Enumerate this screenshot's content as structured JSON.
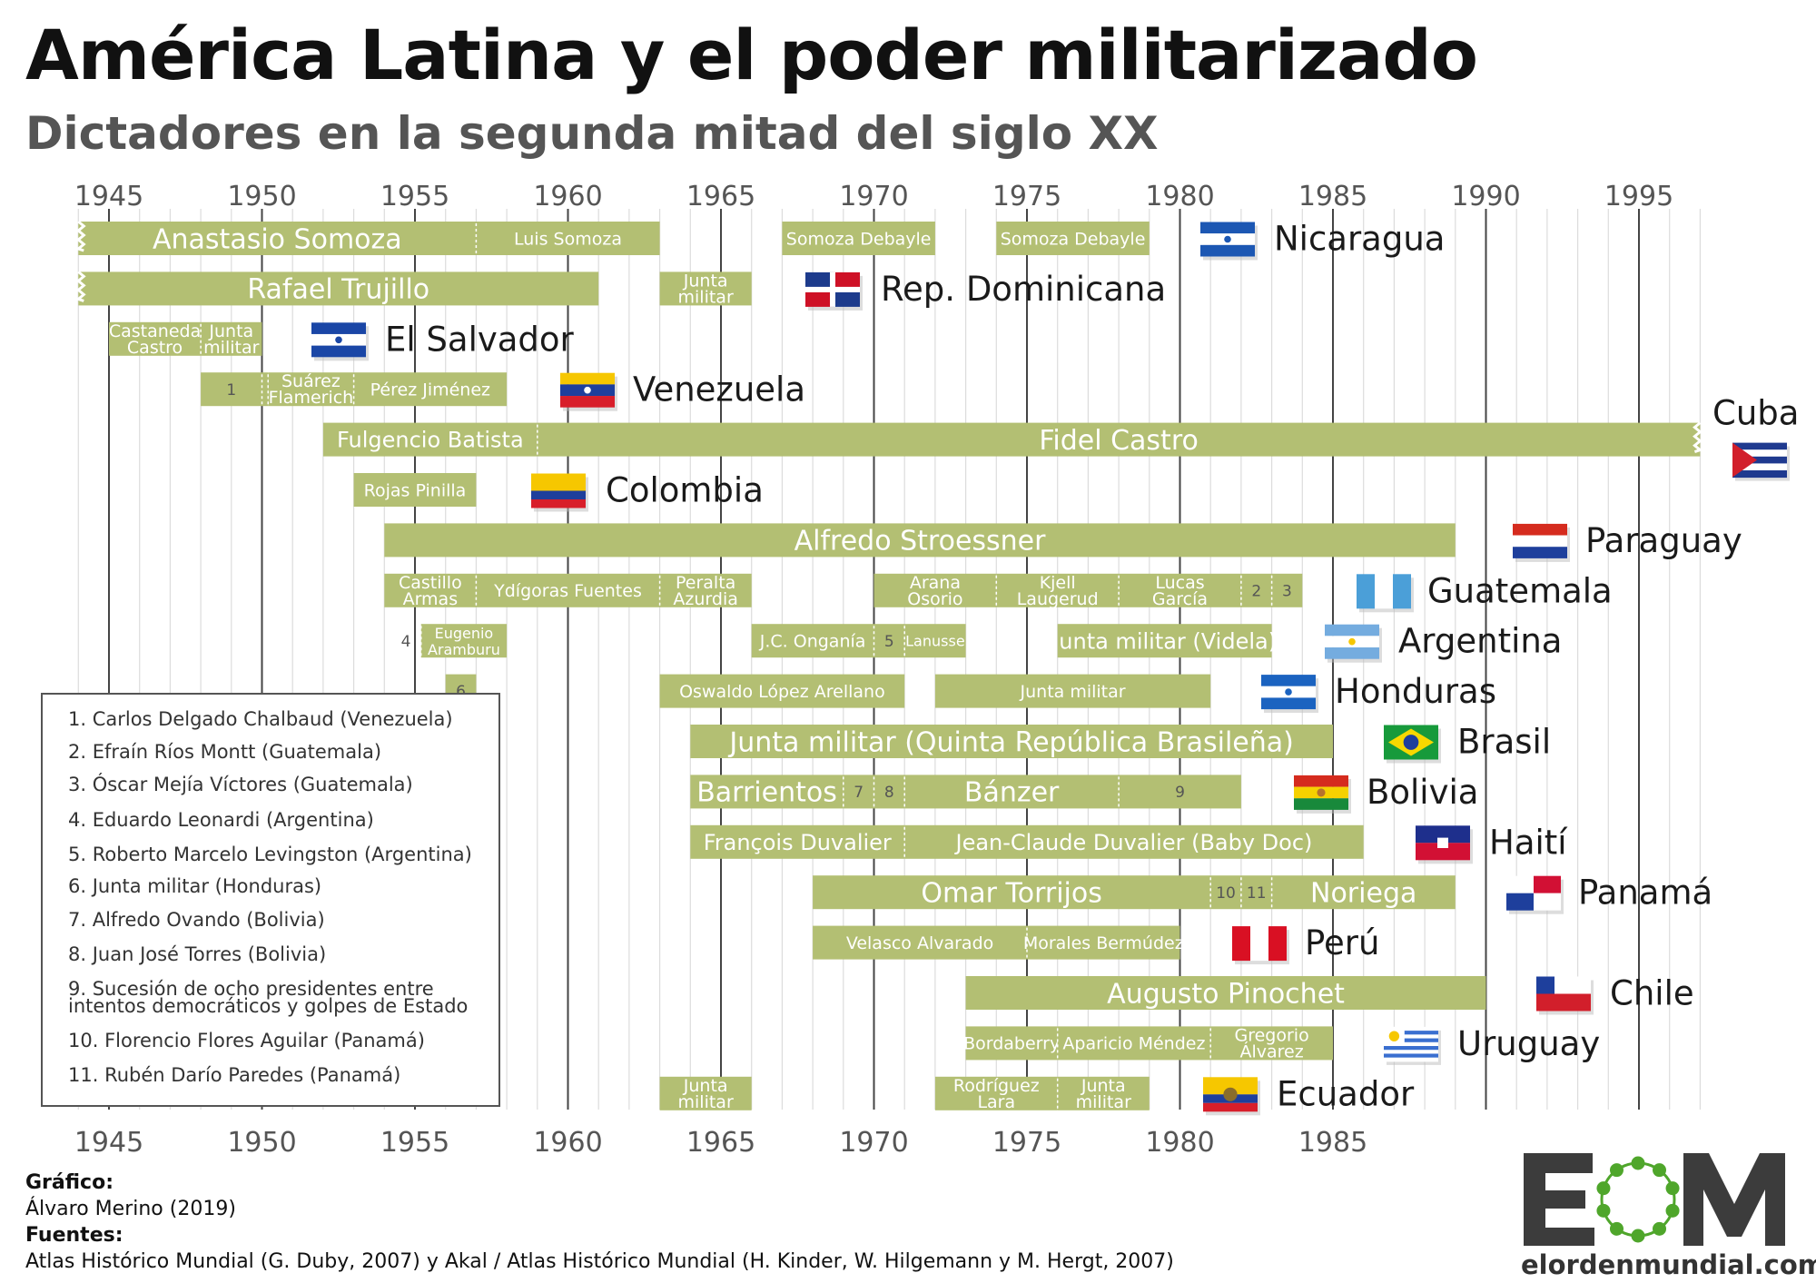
{
  "header": {
    "title": "América Latina y el poder militarizado",
    "subtitle": "Dictadores en la segunda mitad del siglo XX"
  },
  "axis": {
    "top_ticks": [
      "1945",
      "1950",
      "1955",
      "1960",
      "1965",
      "1970",
      "1975",
      "1980",
      "1985",
      "1990",
      "1995"
    ],
    "bottom_ticks": [
      "1945",
      "1950",
      "1955",
      "1960",
      "1965",
      "1970",
      "1975",
      "1980",
      "1985"
    ]
  },
  "chart_data": {
    "type": "gantt",
    "title": "América Latina y el poder militarizado",
    "subtitle": "Dictadores en la segunda mitad del siglo XX",
    "xlim": [
      1944,
      1997
    ],
    "grid": true,
    "rows": [
      {
        "country": "Nicaragua",
        "segments": [
          {
            "label": "Anastasio Somoza",
            "start": 1944,
            "end": 1957,
            "size": "l",
            "cut_left": true
          },
          {
            "label": "Luis Somoza",
            "start": 1957,
            "end": 1963,
            "size": "s"
          },
          {
            "label": "Somoza Debayle",
            "start": 1967,
            "end": 1972,
            "size": "s"
          },
          {
            "label": "Somoza Debayle",
            "start": 1974,
            "end": 1979,
            "size": "s"
          }
        ]
      },
      {
        "country": "Rep. Dominicana",
        "segments": [
          {
            "label": "Rafael Trujillo",
            "start": 1944,
            "end": 1961,
            "size": "l",
            "cut_left": true
          },
          {
            "label": "Junta|militar",
            "start": 1963,
            "end": 1966,
            "size": "s"
          }
        ]
      },
      {
        "country": "El Salvador",
        "segments": [
          {
            "label": "Castaneda|Castro",
            "start": 1945,
            "end": 1948,
            "size": "s"
          },
          {
            "label": "Junta|militar",
            "start": 1948,
            "end": 1950,
            "size": "s"
          }
        ]
      },
      {
        "country": "Venezuela",
        "segments": [
          {
            "label": "1",
            "start": 1948,
            "end": 1950,
            "size": "n"
          },
          {
            "label": "",
            "start": 1950,
            "end": 1950.2,
            "size": "n"
          },
          {
            "label": "Suárez|Flamerich",
            "start": 1950.2,
            "end": 1953,
            "size": "s"
          },
          {
            "label": "Pérez Jiménez",
            "start": 1953,
            "end": 1958,
            "size": "s"
          }
        ]
      },
      {
        "country": "Cuba",
        "segments": [
          {
            "label": "Fulgencio Batista",
            "start": 1952,
            "end": 1959,
            "size": "m"
          },
          {
            "label": "Fidel Castro",
            "start": 1959,
            "end": 1997,
            "size": "l",
            "cut_right": true
          }
        ]
      },
      {
        "country": "Colombia",
        "segments": [
          {
            "label": "Rojas Pinilla",
            "start": 1953,
            "end": 1957,
            "size": "s"
          }
        ]
      },
      {
        "country": "Paraguay",
        "segments": [
          {
            "label": "Alfredo Stroessner",
            "start": 1954,
            "end": 1989,
            "size": "l"
          }
        ]
      },
      {
        "country": "Guatemala",
        "segments": [
          {
            "label": "Castillo|Armas",
            "start": 1954,
            "end": 1957,
            "size": "s"
          },
          {
            "label": "Ydígoras Fuentes",
            "start": 1957,
            "end": 1963,
            "size": "s"
          },
          {
            "label": "Peralta|Azurdia",
            "start": 1963,
            "end": 1966,
            "size": "s"
          },
          {
            "label": "Arana|Osorio",
            "start": 1970,
            "end": 1974,
            "size": "s"
          },
          {
            "label": "Kjell|Laugerud",
            "start": 1974,
            "end": 1978,
            "size": "s"
          },
          {
            "label": "Lucas|García",
            "start": 1978,
            "end": 1982,
            "size": "s"
          },
          {
            "label": "2",
            "start": 1982,
            "end": 1983,
            "size": "n"
          },
          {
            "label": "3",
            "start": 1983,
            "end": 1984,
            "size": "n"
          }
        ]
      },
      {
        "country": "Argentina",
        "segments": [
          {
            "label": "4",
            "start": 1955,
            "end": 1955.2,
            "size": "n",
            "outside": true
          },
          {
            "label": "Eugenio|Aramburu",
            "start": 1955.2,
            "end": 1958,
            "size": "xs"
          },
          {
            "label": "J.C. Onganía",
            "start": 1966,
            "end": 1970,
            "size": "s"
          },
          {
            "label": "5",
            "start": 1970,
            "end": 1971,
            "size": "n"
          },
          {
            "label": "Lanusse",
            "start": 1971,
            "end": 1973,
            "size": "xs"
          },
          {
            "label": "Junta militar (Videla)",
            "start": 1976,
            "end": 1983,
            "size": "m"
          }
        ]
      },
      {
        "country": "Honduras",
        "segments": [
          {
            "label": "6",
            "start": 1956,
            "end": 1957,
            "size": "n"
          },
          {
            "label": "Oswaldo López Arellano",
            "start": 1963,
            "end": 1971,
            "size": "s"
          },
          {
            "label": "Junta militar",
            "start": 1972,
            "end": 1981,
            "size": "s"
          }
        ]
      },
      {
        "country": "Brasil",
        "segments": [
          {
            "label": "Junta militar (Quinta República Brasileña)",
            "start": 1964,
            "end": 1985,
            "size": "l"
          }
        ]
      },
      {
        "country": "Bolivia",
        "segments": [
          {
            "label": "Barrientos",
            "start": 1964,
            "end": 1969,
            "size": "l"
          },
          {
            "label": "7",
            "start": 1969,
            "end": 1970,
            "size": "n"
          },
          {
            "label": "8",
            "start": 1970,
            "end": 1971,
            "size": "n"
          },
          {
            "label": "Bánzer",
            "start": 1971,
            "end": 1978,
            "size": "l"
          },
          {
            "label": "9",
            "start": 1978,
            "end": 1982,
            "size": "n"
          }
        ]
      },
      {
        "country": "Haití",
        "segments": [
          {
            "label": "François Duvalier",
            "start": 1964,
            "end": 1971,
            "size": "m"
          },
          {
            "label": "Jean-Claude Duvalier (Baby Doc)",
            "start": 1971,
            "end": 1986,
            "size": "m"
          }
        ]
      },
      {
        "country": "Panamá",
        "segments": [
          {
            "label": "Omar Torrijos",
            "start": 1968,
            "end": 1981,
            "size": "l"
          },
          {
            "label": "10",
            "start": 1981,
            "end": 1982,
            "size": "n"
          },
          {
            "label": "11",
            "start": 1982,
            "end": 1983,
            "size": "n"
          },
          {
            "label": "Noriega",
            "start": 1983,
            "end": 1989,
            "size": "l"
          }
        ]
      },
      {
        "country": "Perú",
        "segments": [
          {
            "label": "Velasco Alvarado",
            "start": 1968,
            "end": 1975,
            "size": "s"
          },
          {
            "label": "Morales Bermúdez",
            "start": 1975,
            "end": 1980,
            "size": "s"
          }
        ]
      },
      {
        "country": "Chile",
        "segments": [
          {
            "label": "Augusto Pinochet",
            "start": 1973,
            "end": 1990,
            "size": "l"
          }
        ]
      },
      {
        "country": "Uruguay",
        "segments": [
          {
            "label": "Bordaberry",
            "start": 1973,
            "end": 1976,
            "size": "s"
          },
          {
            "label": "Aparicio Méndez",
            "start": 1976,
            "end": 1981,
            "size": "s"
          },
          {
            "label": "Gregorio|Álvarez",
            "start": 1981,
            "end": 1985,
            "size": "s"
          }
        ]
      },
      {
        "country": "Ecuador",
        "segments": [
          {
            "label": "Junta|militar",
            "start": 1963,
            "end": 1966,
            "size": "s"
          },
          {
            "label": "Rodríguez|Lara",
            "start": 1972,
            "end": 1976,
            "size": "s"
          },
          {
            "label": "Junta|militar",
            "start": 1976,
            "end": 1979,
            "size": "s"
          }
        ]
      }
    ],
    "flag_colors": {
      "Nicaragua": [
        "#1c57b3",
        "#ffffff",
        "#1c57b3"
      ],
      "Rep. Dominicana": [
        "#1d3b8c",
        "#ce1126",
        "#ffffff"
      ],
      "El Salvador": [
        "#1a46a6",
        "#ffffff",
        "#1a46a6"
      ],
      "Venezuela": [
        "#f6c700",
        "#1e3f9c",
        "#d81e2a"
      ],
      "Cuba": [
        "#1f3a8f",
        "#ffffff",
        "#d21f2b"
      ],
      "Colombia": [
        "#f6c700",
        "#1e3f9c",
        "#d81e2a"
      ],
      "Paraguay": [
        "#d52b1e",
        "#ffffff",
        "#1e3f9c"
      ],
      "Guatemala": [
        "#4b9fd8",
        "#ffffff",
        "#4b9fd8"
      ],
      "Argentina": [
        "#74acdf",
        "#ffffff",
        "#74acdf"
      ],
      "Honduras": [
        "#1b63c0",
        "#ffffff",
        "#1b63c0"
      ],
      "Brasil": [
        "#179a3b",
        "#f7d800",
        "#1e3f9c"
      ],
      "Bolivia": [
        "#d52b1e",
        "#f6d100",
        "#18893b"
      ],
      "Haití": [
        "#1e2f8c",
        "#d21034"
      ],
      "Panamá": [
        "#ffffff",
        "#d21034",
        "#1e3f9c"
      ],
      "Perú": [
        "#d91023",
        "#ffffff",
        "#d91023"
      ],
      "Chile": [
        "#1e3f9c",
        "#ffffff",
        "#d21f2b"
      ],
      "Uruguay": [
        "#ffffff",
        "#3a6fd0",
        "#f6c700"
      ],
      "Ecuador": [
        "#f6c700",
        "#1e3f9c",
        "#d81e2a"
      ]
    },
    "bar_color": "#b3bf73"
  },
  "notes": [
    "1. Carlos Delgado Chalbaud (Venezuela)",
    "2. Efraín Ríos Montt (Guatemala)",
    "3. Óscar Mejía Víctores (Guatemala)",
    "4. Eduardo Leonardi (Argentina)",
    "5. Roberto Marcelo Levingston (Argentina)",
    "6. Junta militar (Honduras)",
    "7. Alfredo Ovando (Bolivia)",
    "8. Juan José Torres (Bolivia)",
    "9. Sucesión de ocho presidentes entre",
    "intentos democráticos y golpes de Estado",
    "10. Florencio Flores Aguilar (Panamá)",
    "11. Rubén Darío Paredes (Panamá)"
  ],
  "credits": {
    "grafico_label": "Gráfico:",
    "grafico_value": "Álvaro Merino (2019)",
    "fuentes_label": "Fuentes:",
    "fuentes_value": "Atlas Histórico Mundial (G. Duby, 2007) y Akal / Atlas Histórico Mundial (H. Kinder, W. Hilgemann y M. Hergt, 2007)"
  },
  "logo": {
    "letters": "EOM",
    "url": "elordenmundial.com",
    "colors": {
      "dark": "#3c3c3c",
      "green": "#4fa62b"
    }
  }
}
